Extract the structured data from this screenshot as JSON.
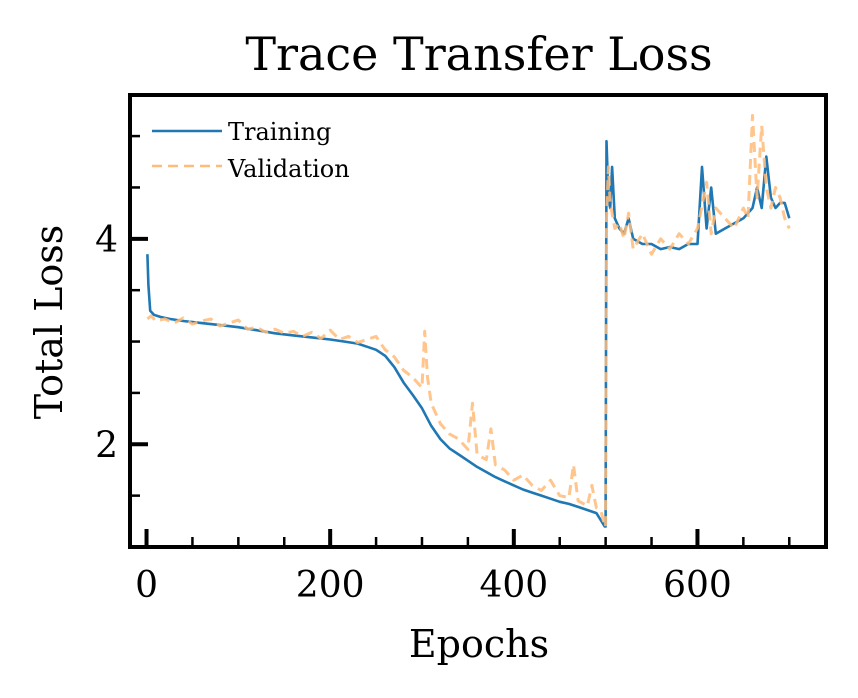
{
  "chart_data": {
    "type": "line",
    "title": "Trace Transfer Loss",
    "xlabel": "Epochs",
    "ylabel": "Total Loss",
    "xlim": [
      -18,
      740
    ],
    "ylim": [
      1.0,
      5.4
    ],
    "x_ticks": [
      0,
      200,
      400,
      600
    ],
    "x_ticks_minor": [
      50,
      100,
      150,
      250,
      300,
      350,
      450,
      500,
      550,
      650,
      700
    ],
    "y_ticks": [
      2,
      4
    ],
    "y_ticks_minor": [
      1.5,
      2.5,
      3.0,
      3.5,
      4.5,
      5.0
    ],
    "grid": false,
    "legend": "top-left",
    "colors": {
      "training": "#1f77b4",
      "validation": "#ffbb78"
    },
    "series": [
      {
        "name": "Training",
        "style": "solid",
        "x": [
          1,
          2,
          4,
          8,
          15,
          25,
          40,
          60,
          80,
          100,
          120,
          140,
          160,
          180,
          200,
          215,
          230,
          240,
          250,
          260,
          270,
          280,
          290,
          300,
          310,
          320,
          330,
          340,
          350,
          360,
          370,
          380,
          390,
          400,
          410,
          420,
          430,
          440,
          450,
          460,
          470,
          480,
          490,
          499,
          500,
          501,
          503,
          505,
          507,
          510,
          515,
          520,
          525,
          530,
          540,
          550,
          560,
          570,
          580,
          590,
          600,
          605,
          610,
          615,
          620,
          630,
          640,
          650,
          660,
          665,
          670,
          675,
          680,
          685,
          690,
          695,
          700
        ],
        "y": [
          3.85,
          3.55,
          3.3,
          3.26,
          3.24,
          3.22,
          3.2,
          3.18,
          3.16,
          3.14,
          3.11,
          3.08,
          3.06,
          3.04,
          3.02,
          3.0,
          2.98,
          2.95,
          2.92,
          2.86,
          2.75,
          2.6,
          2.48,
          2.35,
          2.18,
          2.05,
          1.96,
          1.9,
          1.84,
          1.78,
          1.73,
          1.68,
          1.64,
          1.6,
          1.56,
          1.53,
          1.5,
          1.47,
          1.44,
          1.42,
          1.39,
          1.36,
          1.33,
          1.2,
          1.2,
          4.95,
          4.4,
          4.3,
          4.7,
          4.2,
          4.1,
          4.05,
          4.2,
          4.0,
          3.95,
          3.95,
          3.9,
          3.92,
          3.9,
          3.95,
          3.95,
          4.7,
          4.1,
          4.5,
          4.05,
          4.1,
          4.15,
          4.2,
          4.3,
          4.5,
          4.3,
          4.8,
          4.4,
          4.3,
          4.35,
          4.35,
          4.2
        ]
      },
      {
        "name": "Validation",
        "style": "dashed",
        "x": [
          1,
          5,
          10,
          20,
          30,
          40,
          50,
          60,
          70,
          80,
          90,
          100,
          110,
          120,
          130,
          140,
          150,
          160,
          170,
          180,
          190,
          200,
          210,
          220,
          230,
          240,
          250,
          255,
          260,
          270,
          280,
          290,
          300,
          303,
          306,
          310,
          320,
          330,
          340,
          350,
          355,
          360,
          370,
          375,
          380,
          390,
          400,
          410,
          420,
          430,
          440,
          450,
          460,
          465,
          470,
          480,
          485,
          490,
          495,
          499,
          500,
          501,
          503,
          505,
          507,
          510,
          515,
          520,
          525,
          530,
          540,
          550,
          560,
          570,
          580,
          590,
          600,
          610,
          615,
          620,
          630,
          640,
          650,
          655,
          660,
          665,
          670,
          675,
          680,
          685,
          690,
          695,
          700
        ],
        "y": [
          3.22,
          3.25,
          3.2,
          3.22,
          3.18,
          3.23,
          3.17,
          3.2,
          3.22,
          3.15,
          3.18,
          3.21,
          3.12,
          3.14,
          3.09,
          3.12,
          3.08,
          3.1,
          3.05,
          3.09,
          3.03,
          3.11,
          3.02,
          3.05,
          2.99,
          3.02,
          3.05,
          2.98,
          2.92,
          2.85,
          2.72,
          2.65,
          2.55,
          3.1,
          2.65,
          2.4,
          2.2,
          2.1,
          2.05,
          1.95,
          2.4,
          1.9,
          1.85,
          2.15,
          1.8,
          1.75,
          1.65,
          1.7,
          1.6,
          1.55,
          1.65,
          1.5,
          1.48,
          1.8,
          1.45,
          1.4,
          1.6,
          1.38,
          1.35,
          1.2,
          1.2,
          4.2,
          4.7,
          4.35,
          4.25,
          4.1,
          4.15,
          4.0,
          4.25,
          3.9,
          4.05,
          3.85,
          4.0,
          3.9,
          4.05,
          3.95,
          4.1,
          4.55,
          4.05,
          4.3,
          4.2,
          4.1,
          4.3,
          4.2,
          5.2,
          4.4,
          5.1,
          4.5,
          4.3,
          4.5,
          4.4,
          4.2,
          4.1
        ]
      }
    ]
  }
}
